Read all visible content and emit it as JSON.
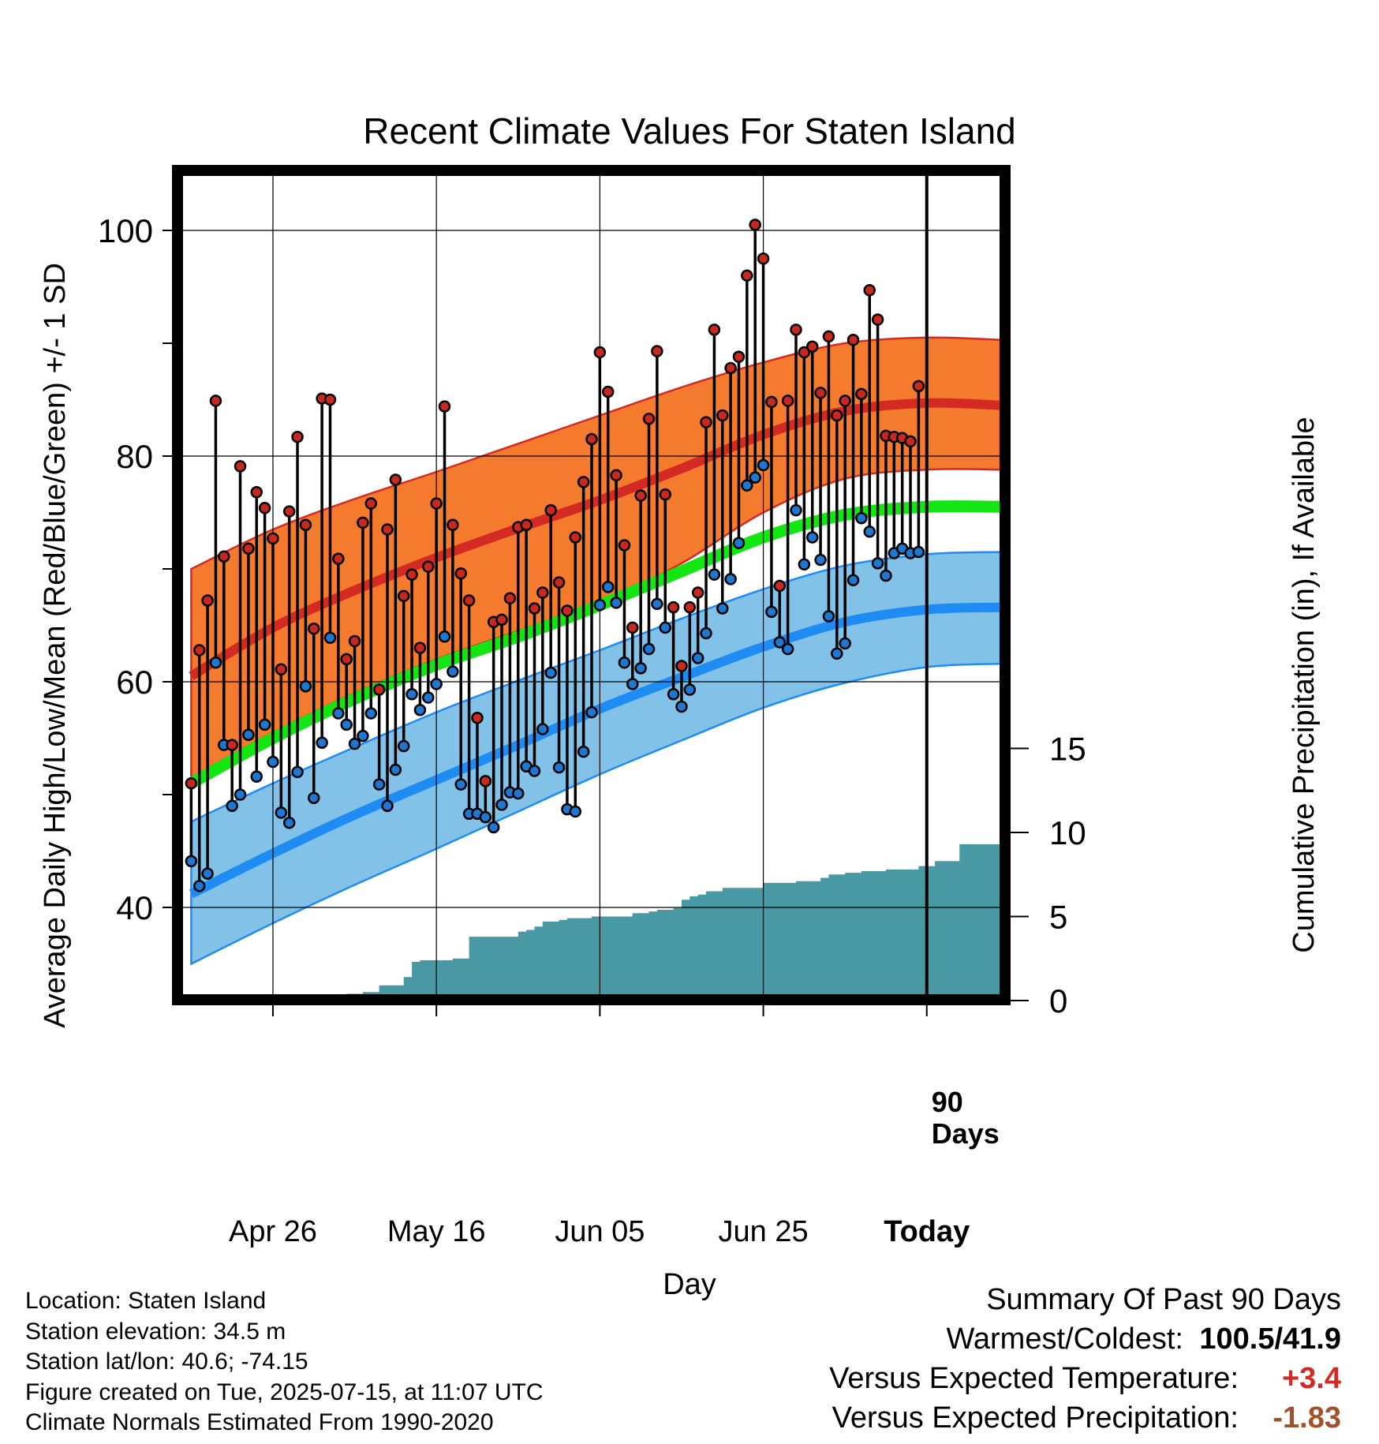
{
  "chart_data": {
    "type": "line",
    "title": "Recent Climate Values For Staten Island",
    "xlabel": "Day",
    "ylabel": "Average Daily High/Low/Mean (Red/Blue/Green) +/- 1 SD",
    "y2label": "Cumulative Precipitation (in), If Available",
    "ylim": [
      33,
      107
    ],
    "y2lim": [
      0,
      24.5
    ],
    "yticks": [
      "40",
      "60",
      "80",
      "100"
    ],
    "y2ticks": [
      "0",
      "5",
      "10",
      "15"
    ],
    "xticks": [
      "Apr 26",
      "May 16",
      "Jun 05",
      "Jun 25",
      "Today"
    ],
    "xtick_days": [
      10,
      30,
      50,
      70,
      90
    ],
    "xlim": [
      -1,
      99
    ],
    "period_label": "90 Days",
    "grid": true,
    "colors": {
      "high_band": "#f47b2e",
      "high_mean": "#d42a24",
      "low_band": "#82c2e8",
      "low_mean": "#1e8cf2",
      "mean": "#14e614",
      "precip": "#4899a4",
      "high_point": "#c8281e",
      "low_point": "#1e78d2"
    },
    "normals": {
      "days": [
        0,
        10,
        20,
        30,
        40,
        50,
        60,
        70,
        80,
        90,
        99
      ],
      "high_mean": [
        60.5,
        64.8,
        68.1,
        71.0,
        73.6,
        76.1,
        78.9,
        81.9,
        84.0,
        84.7,
        84.5
      ],
      "high_band_upper": [
        70.0,
        73.5,
        76.2,
        78.6,
        81.1,
        83.6,
        86.1,
        88.3,
        90.0,
        90.5,
        90.3
      ],
      "high_band_lower": [
        51.5,
        55.5,
        59.0,
        62.0,
        64.5,
        67.0,
        70.5,
        75.0,
        78.0,
        78.8,
        78.8
      ],
      "mean": [
        51.0,
        55.0,
        58.5,
        61.5,
        64.0,
        66.8,
        69.8,
        72.8,
        74.8,
        75.5,
        75.5
      ],
      "low_mean": [
        41.2,
        44.8,
        48.2,
        51.3,
        54.4,
        57.6,
        60.4,
        63.1,
        65.3,
        66.4,
        66.6
      ],
      "low_band_upper": [
        47.6,
        51.0,
        54.2,
        57.3,
        60.1,
        62.8,
        65.6,
        68.2,
        70.3,
        71.3,
        71.5
      ],
      "low_band_lower": [
        35.0,
        38.6,
        42.0,
        45.2,
        48.5,
        51.8,
        54.8,
        57.7,
        59.9,
        61.3,
        61.6
      ]
    },
    "series": [
      {
        "name": "High",
        "values": [
          51.0,
          62.8,
          67.2,
          84.9,
          71.1,
          54.4,
          79.1,
          71.8,
          76.8,
          75.4,
          72.7,
          61.1,
          75.1,
          81.7,
          73.9,
          64.7,
          85.1,
          85.0,
          70.9,
          62.0,
          63.6,
          74.1,
          75.8,
          59.3,
          73.5,
          77.9,
          67.6,
          69.5,
          63.0,
          70.2,
          75.8,
          84.4,
          73.9,
          69.6,
          67.2,
          56.8,
          51.2,
          65.3,
          65.5,
          67.4,
          73.7,
          73.9,
          66.5,
          67.9,
          75.2,
          68.8,
          66.3,
          72.8,
          77.7,
          81.5,
          89.2,
          85.7,
          78.3,
          72.1,
          64.8,
          76.5,
          83.3,
          89.3,
          76.6,
          66.6,
          61.4,
          66.6,
          67.9,
          83.0,
          91.2,
          83.6,
          87.8,
          88.8,
          96.0,
          100.5,
          97.5,
          84.8,
          68.5,
          84.9,
          91.2,
          89.2,
          89.7,
          85.6,
          90.6,
          83.6,
          84.9,
          90.3,
          85.5,
          94.7,
          92.1,
          81.8,
          81.7,
          81.6,
          81.3,
          86.2
        ]
      },
      {
        "name": "Low",
        "values": [
          44.1,
          41.9,
          43.0,
          61.7,
          54.4,
          49.0,
          50.0,
          55.3,
          51.6,
          56.2,
          52.9,
          48.4,
          47.5,
          52.0,
          59.6,
          49.7,
          54.6,
          63.9,
          57.2,
          56.2,
          54.5,
          55.2,
          57.2,
          50.9,
          49.0,
          52.2,
          54.3,
          58.9,
          57.5,
          58.6,
          59.8,
          64.0,
          60.9,
          50.9,
          48.3,
          48.3,
          48.0,
          47.1,
          49.1,
          50.2,
          50.1,
          52.5,
          52.1,
          55.8,
          60.8,
          52.4,
          48.7,
          48.5,
          53.8,
          57.3,
          66.8,
          68.4,
          67.0,
          61.7,
          59.8,
          61.2,
          62.9,
          66.9,
          64.8,
          58.9,
          57.8,
          59.3,
          62.1,
          64.3,
          69.5,
          66.5,
          69.1,
          72.3,
          77.4,
          78.1,
          79.2,
          66.2,
          63.5,
          62.9,
          75.2,
          70.4,
          72.8,
          70.8,
          65.8,
          62.5,
          63.4,
          69.0,
          74.5,
          73.3,
          70.5,
          69.4,
          71.4,
          71.8,
          71.4,
          71.5
        ]
      }
    ],
    "precip_cumulative": {
      "days": [
        0,
        17,
        18,
        19,
        21,
        22,
        23,
        24,
        26,
        27,
        28,
        29,
        30,
        32,
        33,
        34,
        36,
        37,
        38,
        40,
        41,
        42,
        43,
        44,
        45,
        46,
        47,
        48,
        49,
        50,
        51,
        52,
        53,
        54,
        55,
        56,
        57,
        58,
        59,
        60,
        61,
        62,
        63,
        64,
        65,
        68,
        70,
        72,
        74,
        76,
        77,
        78,
        80,
        81,
        82,
        84,
        85,
        86,
        87,
        88,
        89,
        90,
        91,
        94,
        95,
        96,
        97,
        98,
        99
      ],
      "values": [
        0.0,
        0.0,
        0.3,
        0.4,
        0.5,
        0.5,
        0.9,
        0.9,
        1.4,
        2.3,
        2.4,
        2.4,
        2.4,
        2.5,
        2.5,
        3.8,
        3.8,
        3.8,
        3.8,
        4.1,
        4.2,
        4.4,
        4.7,
        4.7,
        4.8,
        4.9,
        4.9,
        4.9,
        5.0,
        5.0,
        5.0,
        5.0,
        5.0,
        5.2,
        5.2,
        5.3,
        5.4,
        5.4,
        5.5,
        6.0,
        6.2,
        6.3,
        6.5,
        6.5,
        6.7,
        6.7,
        7.0,
        7.0,
        7.1,
        7.1,
        7.3,
        7.5,
        7.6,
        7.6,
        7.7,
        7.7,
        7.8,
        7.8,
        7.8,
        7.8,
        8.0,
        8.0,
        8.3,
        9.3,
        9.3,
        9.3,
        9.3,
        9.3,
        9.3
      ]
    }
  },
  "station": {
    "location": "Location: Staten Island",
    "elevation": "Station elevation: 34.5 m",
    "latlon": "Station lat/lon: 40.6; -74.15",
    "created": "Figure created on Tue, 2025-07-15, at 11:07 UTC",
    "normals": "Climate Normals Estimated From 1990-2020"
  },
  "summary": {
    "heading": "Summary Of Past 90 Days",
    "warmest_coldest_label": "Warmest/Coldest:",
    "warmest_coldest_value": "100.5/41.9",
    "temp_label": "Versus Expected Temperature:",
    "temp_value": "+3.4",
    "temp_color": "#d42a24",
    "precip_label": "Versus Expected Precipitation:",
    "precip_value": "-1.83",
    "precip_color": "#a0522d"
  }
}
